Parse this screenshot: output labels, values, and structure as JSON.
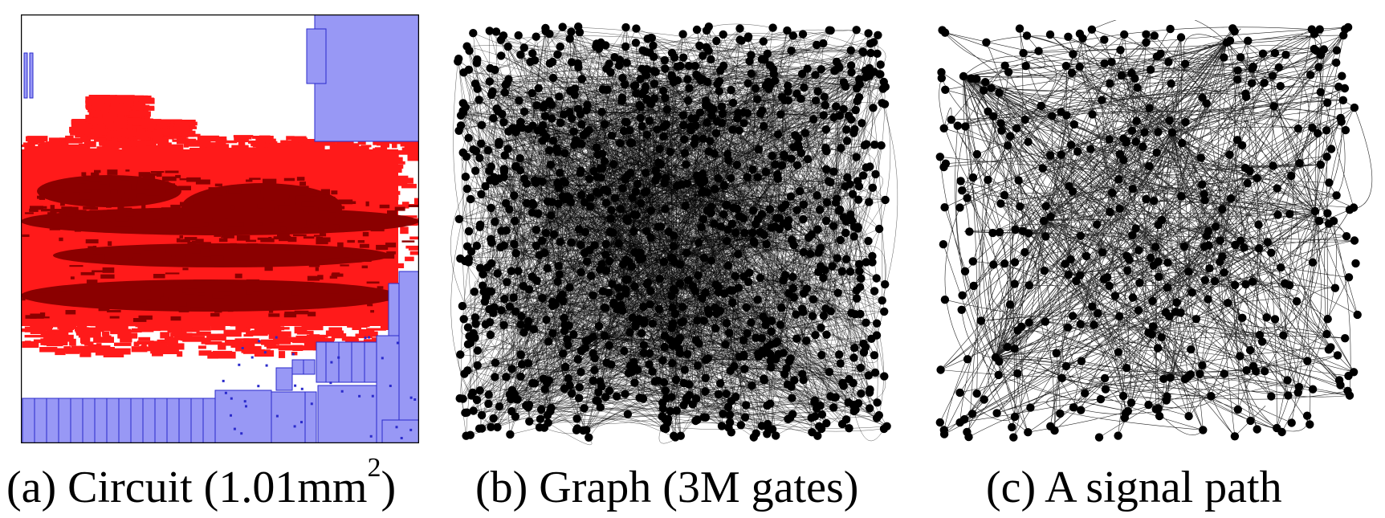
{
  "panels": [
    {
      "id": "a",
      "caption_prefix": "(a) Circuit (1.01mm",
      "caption_sup": "2",
      "caption_suffix": ")",
      "colors": {
        "macro": "#9898f5",
        "macro_border": "#2a2acb",
        "congestion_light": "#ff1a1a",
        "congestion_dark": "#8b0000"
      }
    },
    {
      "id": "b",
      "caption": "(b) Graph (3M gates)",
      "colors": {
        "node": "#000000",
        "edge": "#000000"
      }
    },
    {
      "id": "c",
      "caption": "(c) A signal path",
      "colors": {
        "node": "#000000",
        "edge": "#000000"
      }
    }
  ]
}
